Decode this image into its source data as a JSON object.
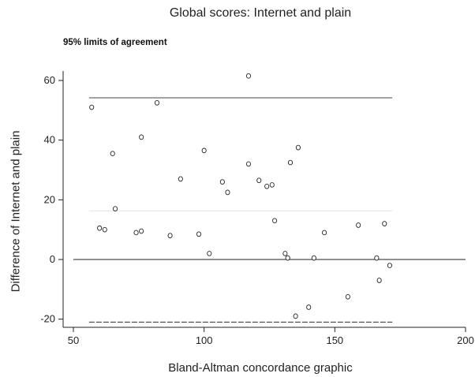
{
  "chart_data": {
    "type": "scatter",
    "title": "Global scores: Internet and plain",
    "subtitle": "95% limits of agreement",
    "xlabel": "Bland-Altman concordance graphic",
    "ylabel": "Difference of Internet and plain",
    "xlim": [
      50,
      200
    ],
    "ylim": [
      -23,
      66
    ],
    "xticks": [
      50,
      100,
      150,
      200
    ],
    "yticks": [
      -20,
      0,
      20,
      40,
      60
    ],
    "grid": false,
    "reference_lines": [
      {
        "kind": "upper_limit",
        "y": 54.2,
        "x_range": [
          56,
          172
        ]
      },
      {
        "kind": "mean",
        "y": 16.3,
        "x_range": [
          56,
          172
        ]
      },
      {
        "kind": "lower_limit",
        "y": -21.0,
        "x_range": [
          56,
          172
        ]
      },
      {
        "kind": "zero",
        "y": 0,
        "x_range": [
          50,
          200
        ]
      }
    ],
    "series": [
      {
        "points": [
          [
            57,
            51
          ],
          [
            60,
            10.5
          ],
          [
            62,
            10
          ],
          [
            65,
            35.5
          ],
          [
            66,
            17
          ],
          [
            74,
            9
          ],
          [
            76,
            41
          ],
          [
            76,
            9.5
          ],
          [
            82,
            52.5
          ],
          [
            87,
            8
          ],
          [
            91,
            27
          ],
          [
            98,
            8.5
          ],
          [
            100,
            36.5
          ],
          [
            102,
            2
          ],
          [
            107,
            26
          ],
          [
            109,
            22.5
          ],
          [
            117,
            61.5
          ],
          [
            117,
            32
          ],
          [
            121,
            26.5
          ],
          [
            124,
            24.5
          ],
          [
            126,
            25
          ],
          [
            127,
            13
          ],
          [
            131,
            2
          ],
          [
            132,
            0.5
          ],
          [
            133,
            32.5
          ],
          [
            135,
            -19
          ],
          [
            136,
            37.5
          ],
          [
            140,
            -16
          ],
          [
            142,
            0.5
          ],
          [
            146,
            9
          ],
          [
            155,
            -12.5
          ],
          [
            159,
            11.5
          ],
          [
            166,
            0.5
          ],
          [
            167,
            -7
          ],
          [
            169,
            12
          ],
          [
            171,
            -2
          ]
        ]
      }
    ]
  }
}
